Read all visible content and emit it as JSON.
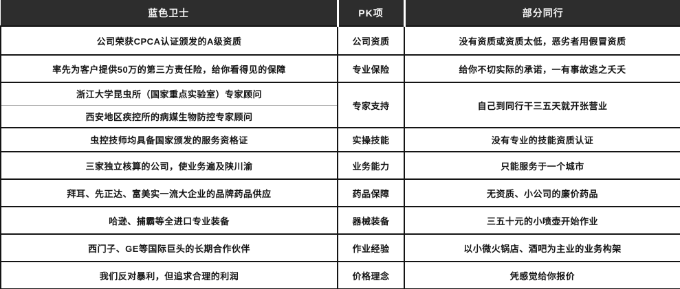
{
  "table": {
    "header": {
      "left": "蓝色卫士",
      "middle": "PK项",
      "right": "部分同行"
    },
    "rows": [
      {
        "left": "公司荣获CPCA认证颁发的A级资质",
        "item": "公司资质",
        "right": "没有资质或资质太低，恶劣者用假冒资质"
      },
      {
        "left": "率先为客户提供50万的第三方责任险，给你看得见的保障",
        "item": "专业保险",
        "right": "给你不切实际的承诺，一有事故逃之夭夭"
      },
      {
        "left_lines": [
          "浙江大学昆虫所（国家重点实验室）专家顾问",
          "西安地区疾控所的病媒生物防控专家顾问"
        ],
        "item": "专家支持",
        "right": "自己到同行干三五天就开张营业"
      },
      {
        "left": "虫控技师均具备国家颁发的服务资格证",
        "item": "实操技能",
        "right": "没有专业的技能资质认证"
      },
      {
        "left": "三家独立核算的公司，使业务遍及陕川渝",
        "item": "业务能力",
        "right": "只能服务于一个城市"
      },
      {
        "left": "拜耳、先正达、富美实一流大企业的品牌药品供应",
        "item": "药品保障",
        "right": "无资质、小公司的廉价药品"
      },
      {
        "left": "哈逊、捕霸等全进口专业装备",
        "item": "器械装备",
        "right": "三五十元的小喷壶开始作业"
      },
      {
        "left": "西门子、GE等国际巨头的长期合作伙伴",
        "item": "作业经验",
        "right": "以小微火锅店、酒吧为主业的业务构架"
      },
      {
        "left": "我们反对暴利，但追求合理的利润",
        "item": "价格理念",
        "right": "凭感觉给你报价"
      }
    ],
    "colors": {
      "header_bg": "#2d2d2d",
      "header_text": "#f7f7f7",
      "body_border": "#141414",
      "sub_divider": "#a8a8a8",
      "body_text": "#141414"
    }
  }
}
